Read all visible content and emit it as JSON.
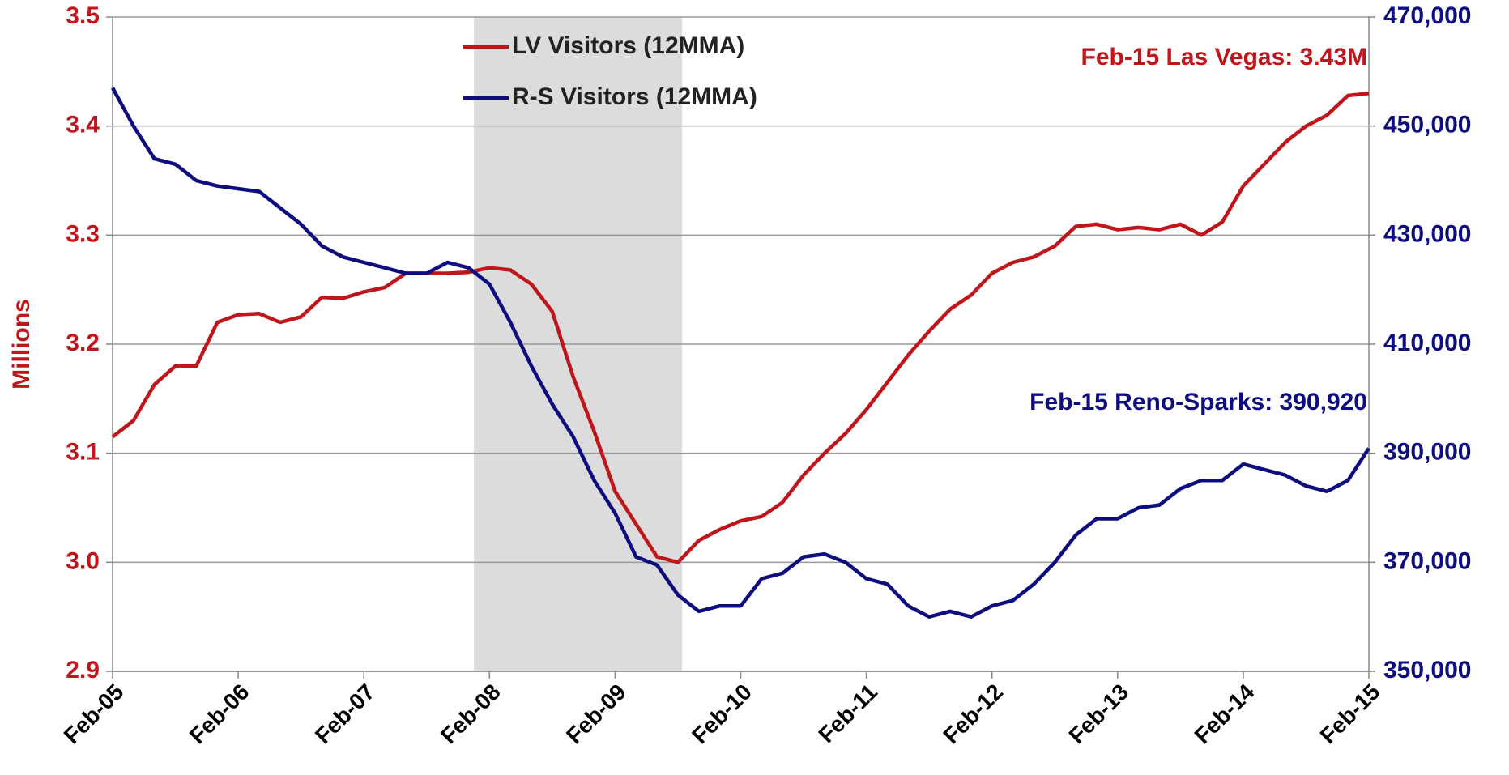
{
  "chart_data": {
    "type": "line",
    "y_label": "Millions",
    "x": [
      0,
      2,
      4,
      6,
      8,
      10,
      12,
      14,
      16,
      18,
      20,
      22,
      24,
      26,
      28,
      30,
      32,
      34,
      36,
      38,
      40,
      42,
      44,
      46,
      48,
      50,
      52,
      54,
      56,
      58,
      60,
      62,
      64,
      66,
      68,
      70,
      72,
      74,
      76,
      78,
      80,
      82,
      84,
      86,
      88,
      90,
      92,
      94,
      96,
      98,
      100,
      102,
      104,
      106,
      108,
      110,
      112,
      114,
      116,
      118,
      120
    ],
    "xlim": [
      0,
      120
    ],
    "xticks": [
      {
        "value": 0,
        "label": "Feb-05"
      },
      {
        "value": 12,
        "label": "Feb-06"
      },
      {
        "value": 24,
        "label": "Feb-07"
      },
      {
        "value": 36,
        "label": "Feb-08"
      },
      {
        "value": 48,
        "label": "Feb-09"
      },
      {
        "value": 60,
        "label": "Feb-10"
      },
      {
        "value": 72,
        "label": "Feb-11"
      },
      {
        "value": 84,
        "label": "Feb-12"
      },
      {
        "value": 96,
        "label": "Feb-13"
      },
      {
        "value": 108,
        "label": "Feb-14"
      },
      {
        "value": 120,
        "label": "Feb-15"
      }
    ],
    "ylim": [
      2.9,
      3.5
    ],
    "yticks": [
      2.9,
      {
        "value": 3,
        "label": "3.0"
      },
      3.1,
      3.2,
      3.3,
      3.4,
      3.5
    ],
    "y2lim": [
      350000,
      470000
    ],
    "y2ticks": [
      {
        "value": 350000,
        "label": "350,000"
      },
      {
        "value": 370000,
        "label": "370,000"
      },
      {
        "value": 390000,
        "label": "390,000"
      },
      {
        "value": 410000,
        "label": "410,000"
      },
      {
        "value": 430000,
        "label": "430,000"
      },
      {
        "value": 450000,
        "label": "450,000"
      },
      {
        "value": 470000,
        "label": "470,000"
      }
    ],
    "grid": true,
    "shade": {
      "x": [
        34.5,
        54.4
      ],
      "color": "#dcdcdc"
    },
    "series": [
      {
        "name": "LV Visitors (12MMA)",
        "color": "#c0151b",
        "axis": "y",
        "values": [
          3.115,
          3.13,
          3.163,
          3.18,
          3.18,
          3.22,
          3.227,
          3.228,
          3.22,
          3.225,
          3.243,
          3.242,
          3.248,
          3.252,
          3.265,
          3.265,
          3.265,
          3.266,
          3.27,
          3.268,
          3.255,
          3.23,
          3.17,
          3.12,
          3.065,
          3.035,
          3.005,
          3.0,
          3.02,
          3.03,
          3.038,
          3.042,
          3.055,
          3.08,
          3.1,
          3.118,
          3.14,
          3.165,
          3.19,
          3.212,
          3.232,
          3.245,
          3.265,
          3.275,
          3.28,
          3.29,
          3.308,
          3.31,
          3.305,
          3.307,
          3.305,
          3.31,
          3.3,
          3.312,
          3.345,
          3.365,
          3.385,
          3.4,
          3.41,
          3.428,
          3.43
        ]
      },
      {
        "name": "R-S Visitors (12MMA)",
        "color": "#0d0d80",
        "axis": "y2",
        "values": [
          457000,
          450000,
          444000,
          443000,
          440000,
          439000,
          438500,
          438000,
          435000,
          432000,
          428000,
          426000,
          425000,
          424000,
          423000,
          423000,
          425000,
          424000,
          421000,
          414000,
          406000,
          399000,
          393000,
          385000,
          379000,
          371000,
          369500,
          364000,
          361000,
          362000,
          362000,
          367000,
          368000,
          371000,
          371500,
          370000,
          367000,
          366000,
          362000,
          360000,
          361000,
          360000,
          362000,
          363000,
          366000,
          370000,
          375000,
          378000,
          378000,
          380000,
          380500,
          383500,
          385000,
          385000,
          388000,
          387000,
          386000,
          384000,
          383000,
          385000,
          390920
        ]
      }
    ],
    "annotations": [
      {
        "text": "Feb-15 Las Vegas: 3.43M",
        "color": "#c0151b"
      },
      {
        "text": "Feb-15 Reno-Sparks: 390,920",
        "color": "#0d0d80"
      }
    ]
  }
}
